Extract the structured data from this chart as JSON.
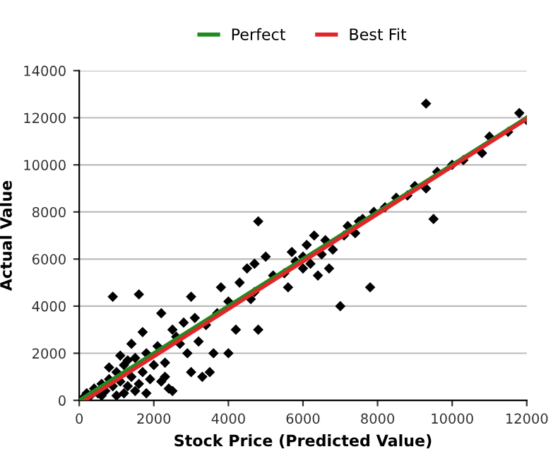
{
  "chart_data": {
    "type": "scatter",
    "xlabel": "Stock Price (Predicted Value)",
    "ylabel": "Actual Value",
    "xlim": [
      0,
      12000
    ],
    "xticks": [
      0,
      2000,
      4000,
      6000,
      8000,
      10000,
      12000
    ],
    "ylim": [
      0,
      14000
    ],
    "yticks": [
      0,
      2000,
      4000,
      6000,
      8000,
      10000,
      12000,
      14000
    ],
    "grid": "y",
    "legend": "top",
    "series": [
      {
        "marker": "diamond",
        "color": "#000000",
        "x": [
          100,
          200,
          300,
          400,
          500,
          600,
          700,
          800,
          900,
          1000,
          1100,
          1200,
          1300,
          1400,
          1500,
          1600,
          1700,
          1800,
          1900,
          2000,
          2100,
          2200,
          2300,
          2400,
          2500,
          2600,
          1000,
          1200,
          1500,
          800,
          1100,
          1400,
          1700,
          900,
          1600,
          2200,
          2800,
          2900,
          3000,
          3300,
          3500,
          3200,
          3400,
          3600,
          3800,
          4000,
          4200,
          4300,
          4500,
          4700,
          4800,
          3700,
          3000,
          2500,
          2700,
          4000,
          3100,
          4600,
          4700,
          4800,
          5000,
          5200,
          5500,
          5700,
          5800,
          6000,
          6100,
          6200,
          6300,
          6400,
          6500,
          6600,
          6700,
          6800,
          7000,
          7100,
          7200,
          7400,
          7500,
          7600,
          7800,
          7900,
          8200,
          8500,
          8800,
          9000,
          9300,
          9500,
          9600,
          9300,
          10000,
          10300,
          10800,
          11000,
          11500,
          11800,
          12000,
          5600,
          6000,
          2300,
          1800,
          600,
          1300
        ],
        "values": [
          100,
          300,
          200,
          500,
          300,
          700,
          400,
          900,
          600,
          1200,
          800,
          1500,
          600,
          1000,
          1800,
          700,
          1200,
          2000,
          900,
          1500,
          2300,
          800,
          1600,
          500,
          400,
          2700,
          200,
          300,
          400,
          1400,
          1900,
          2400,
          2900,
          4400,
          4500,
          3700,
          3300,
          2000,
          1200,
          1000,
          1200,
          2500,
          3200,
          2000,
          4800,
          4200,
          3000,
          5000,
          5600,
          4600,
          3000,
          3700,
          4400,
          3000,
          2400,
          2000,
          3500,
          4300,
          5800,
          7600,
          6100,
          5300,
          5400,
          6300,
          5900,
          6100,
          6600,
          5800,
          7000,
          5300,
          6200,
          6800,
          5600,
          6400,
          4000,
          7000,
          7400,
          7100,
          7600,
          7700,
          4800,
          8000,
          8200,
          8600,
          8700,
          9100,
          9000,
          7700,
          9700,
          12600,
          10000,
          10200,
          10500,
          11200,
          11400,
          12200,
          11900,
          4800,
          5600,
          1000,
          300,
          200,
          1700
        ]
      },
      {
        "type": "line",
        "name": "Perfect",
        "marker": "none",
        "color": "#1e8c1e",
        "x": [
          0,
          12000
        ],
        "values": [
          0,
          12000
        ]
      },
      {
        "type": "line",
        "name": "Best Fit",
        "marker": "none",
        "color": "#e0262b",
        "x": [
          150,
          12000
        ],
        "values": [
          0,
          11950
        ]
      }
    ]
  }
}
